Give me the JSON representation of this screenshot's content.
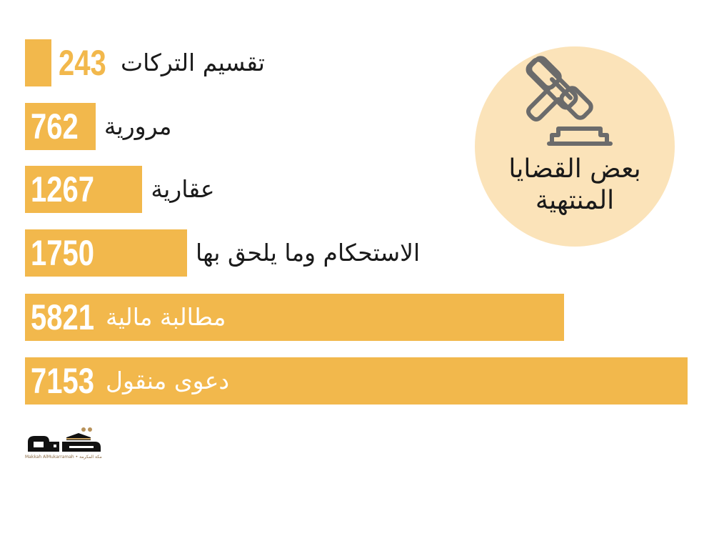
{
  "colors": {
    "bar": "#f2b84c",
    "badge_bg": "#fbe3b9",
    "icon": "#6b6b6b",
    "text_dark": "#1a1a1a",
    "text_light": "#ffffff",
    "logo_gold": "#b8925a"
  },
  "badge": {
    "title_line1": "بعض القضايا",
    "title_line2": "المنتهية",
    "icon": "gavel-icon"
  },
  "logo": {
    "text": "مكة",
    "caption": "Makkah AlMukarramah • مكة المكرمة"
  },
  "chart_data": {
    "type": "bar",
    "orientation": "horizontal",
    "categories": [
      "تقسيم التركات",
      "مرورية",
      "عقارية",
      "الاستحكام وما يلحق بها",
      "مطالبة مالية",
      "دعوى منقول"
    ],
    "values": [
      243,
      762,
      1267,
      1750,
      5821,
      7153
    ],
    "title": "بعض القضايا المنتهية",
    "grid": false
  }
}
